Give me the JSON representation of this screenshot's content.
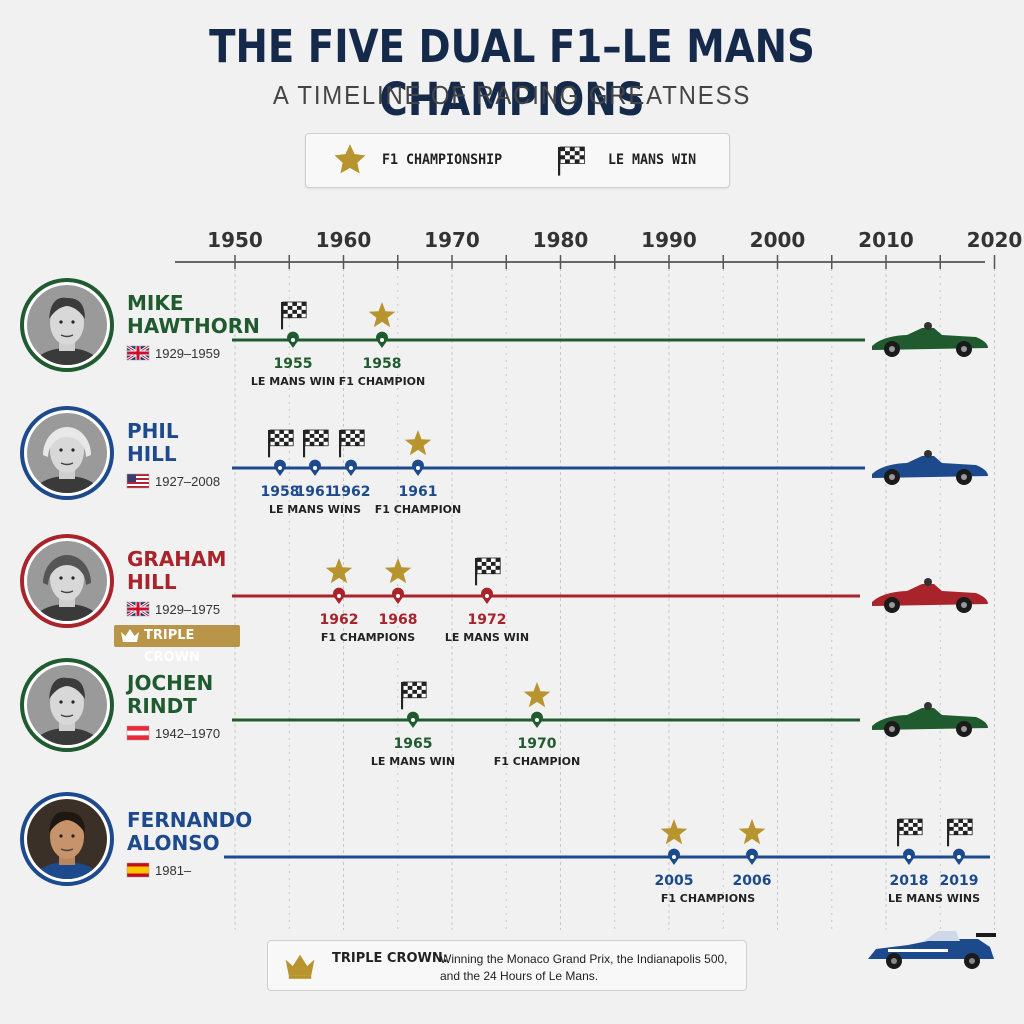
{
  "title": "THE FIVE DUAL F1–LE MANS CHAMPIONS",
  "subtitle": "A TIMELINE OF RACING GREATNESS",
  "legend": {
    "f1_label": "F1 CHAMPIONSHIP",
    "f1_icon": "star-icon",
    "lemans_label": "LE MANS WIN",
    "lemans_icon": "checkered-flag-icon"
  },
  "axis": {
    "ticks": [
      "1950",
      "1960",
      "1970",
      "1980",
      "1990",
      "2000",
      "2010",
      "2020"
    ]
  },
  "colors": {
    "green": "#1f5b2e",
    "blue": "#1d4a8c",
    "red": "#a8232a",
    "gold": "#b8942f",
    "navy": "#152a4a"
  },
  "drivers": [
    {
      "first": "MIKE",
      "last": "HAWTHORN",
      "life": "1929–1959",
      "flag": "uk-flag-icon",
      "color_key": "green",
      "events": [
        {
          "year": "1955",
          "kind": "lemans"
        },
        {
          "year": "1958",
          "kind": "f1"
        }
      ],
      "notes": [
        "LE MANS WIN",
        "F1 CHAMPION"
      ],
      "car": "green-race-car-icon"
    },
    {
      "first": "PHIL",
      "last": "HILL",
      "life": "1927–2008",
      "flag": "us-flag-icon",
      "color_key": "blue",
      "events": [
        {
          "year": "1958",
          "kind": "lemans"
        },
        {
          "year": "1961",
          "kind": "lemans"
        },
        {
          "year": "1962",
          "kind": "lemans"
        },
        {
          "year": "1961",
          "kind": "f1"
        }
      ],
      "notes": [
        "LE MANS WINS",
        "F1 CHAMPION"
      ],
      "car": "blue-race-car-icon"
    },
    {
      "first": "GRAHAM",
      "last": "HILL",
      "life": "1929–1975",
      "flag": "uk-flag-icon",
      "color_key": "red",
      "badge": "TRIPLE CROWN",
      "events": [
        {
          "year": "1962",
          "kind": "f1"
        },
        {
          "year": "1968",
          "kind": "f1"
        },
        {
          "year": "1972",
          "kind": "lemans"
        }
      ],
      "notes": [
        "F1 CHAMPIONS",
        "LE MANS WIN"
      ],
      "car": "red-race-car-icon"
    },
    {
      "first": "JOCHEN",
      "last": "RINDT",
      "life": "1942–1970",
      "flag": "austria-flag-icon",
      "color_key": "green",
      "events": [
        {
          "year": "1965",
          "kind": "lemans"
        },
        {
          "year": "1970",
          "kind": "f1"
        }
      ],
      "notes": [
        "LE MANS WIN",
        "F1 CHAMPION"
      ],
      "car": "green-race-car-icon"
    },
    {
      "first": "FERNANDO",
      "last": "ALONSO",
      "life": "1981–",
      "flag": "spain-flag-icon",
      "color_key": "blue",
      "events": [
        {
          "year": "2005",
          "kind": "f1"
        },
        {
          "year": "2006",
          "kind": "f1"
        },
        {
          "year": "2018",
          "kind": "lemans"
        },
        {
          "year": "2019",
          "kind": "lemans"
        }
      ],
      "notes": [
        "F1 CHAMPIONS",
        "LE MANS WINS"
      ],
      "car": "blue-prototype-car-icon"
    }
  ],
  "footnote": {
    "label": "TRIPLE CROWN:",
    "line1": "Winning the Monaco Grand Prix, the Indianapolis 500,",
    "line2": "and the 24 Hours of Le Mans.",
    "icon": "crown-icon"
  }
}
